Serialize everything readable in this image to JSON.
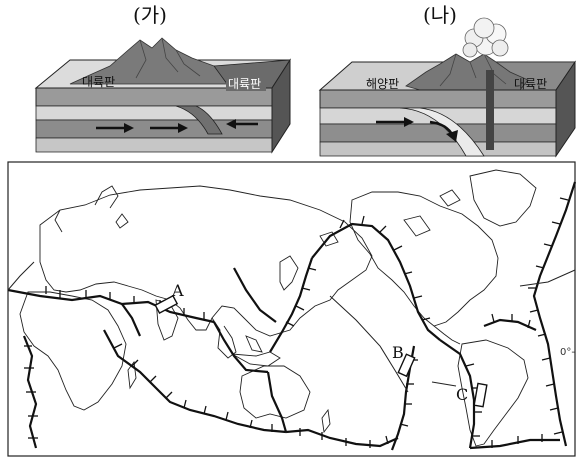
{
  "panels": {
    "left": {
      "title": "(가)",
      "plate_left": "대륙판",
      "plate_right": "대륙판"
    },
    "right": {
      "title": "(나)",
      "plate_left": "해양판",
      "plate_right": "대륙판"
    }
  },
  "map": {
    "regions": {
      "a": "A",
      "b": "B",
      "c": "C"
    },
    "edge_label": "0°-"
  }
}
